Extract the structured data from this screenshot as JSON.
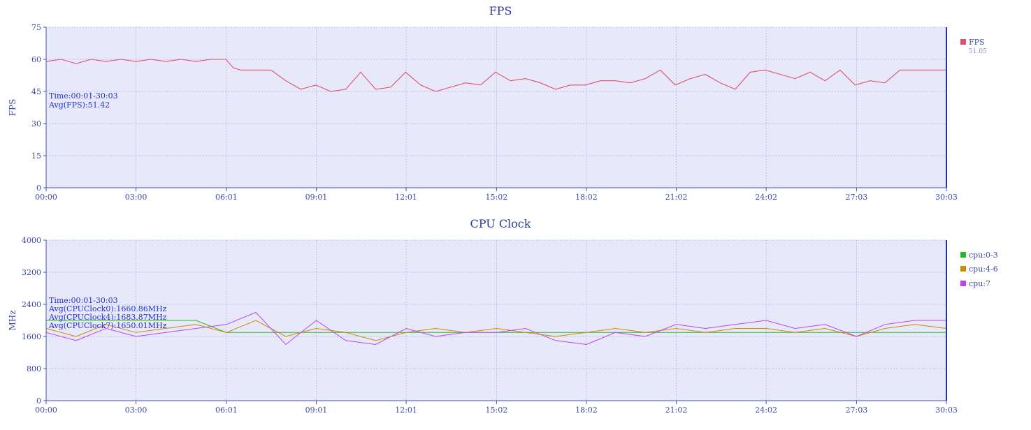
{
  "chart_data": [
    {
      "type": "line",
      "title": "FPS",
      "ylabel": "FPS",
      "xlim": [
        "00:00",
        "30:03"
      ],
      "ylim": [
        0,
        75
      ],
      "yticks": [
        "0",
        "15",
        "30",
        "45",
        "60",
        "75"
      ],
      "xticks": [
        "00:00",
        "03:00",
        "06:01",
        "09:01",
        "12:01",
        "15:02",
        "18:02",
        "21:02",
        "24:02",
        "27:03",
        "30:03"
      ],
      "grid": true,
      "legend_position": "right",
      "annotations": [
        "Time:00:01-30:03",
        "Avg(FPS):51.42"
      ],
      "series": [
        {
          "name": "FPS",
          "legend_value": "51.05",
          "color": "#e0506a",
          "x": [
            "00:00",
            "00:30",
            "01:00",
            "01:30",
            "02:00",
            "02:30",
            "03:00",
            "03:30",
            "04:00",
            "04:30",
            "05:00",
            "05:30",
            "06:00",
            "06:15",
            "06:30",
            "07:00",
            "07:30",
            "08:00",
            "08:30",
            "09:00",
            "09:30",
            "10:00",
            "10:30",
            "11:00",
            "11:30",
            "12:00",
            "12:30",
            "13:00",
            "13:30",
            "14:00",
            "14:30",
            "15:00",
            "15:30",
            "16:00",
            "16:30",
            "17:00",
            "17:30",
            "18:00",
            "18:30",
            "19:00",
            "19:30",
            "20:00",
            "20:30",
            "21:00",
            "21:30",
            "22:00",
            "22:30",
            "23:00",
            "23:30",
            "24:00",
            "24:30",
            "25:00",
            "25:30",
            "26:00",
            "26:30",
            "27:00",
            "27:30",
            "28:00",
            "28:30",
            "29:00",
            "29:30",
            "30:03"
          ],
          "values": [
            59,
            60,
            58,
            60,
            59,
            60,
            59,
            60,
            59,
            60,
            59,
            60,
            60,
            56,
            55,
            55,
            55,
            50,
            46,
            48,
            45,
            46,
            54,
            46,
            47,
            54,
            48,
            45,
            47,
            49,
            48,
            54,
            50,
            51,
            49,
            46,
            48,
            48,
            50,
            50,
            49,
            51,
            55,
            48,
            51,
            53,
            49,
            46,
            54,
            55,
            53,
            51,
            54,
            50,
            55,
            48,
            50,
            49,
            55,
            55,
            55,
            55
          ]
        }
      ]
    },
    {
      "type": "line",
      "title": "CPU Clock",
      "ylabel": "MHz",
      "xlim": [
        "00:00",
        "30:03"
      ],
      "ylim": [
        0,
        4000
      ],
      "yticks": [
        "0",
        "800",
        "1600",
        "2400",
        "3200",
        "4000"
      ],
      "xticks": [
        "00:00",
        "03:00",
        "06:01",
        "09:01",
        "12:01",
        "15:02",
        "18:02",
        "21:02",
        "24:02",
        "27:03",
        "30:03"
      ],
      "grid": true,
      "legend_position": "right",
      "annotations": [
        "Time:00:01-30:03",
        "Avg(CPUClock0):1660.86MHz",
        "Avg(CPUClock4):1683.87MHz",
        "Avg(CPUClock7):1650.01MHz"
      ],
      "series": [
        {
          "name": "cpu:0-3",
          "color": "#22bb22",
          "x": [
            "00:00",
            "01:00",
            "02:00",
            "03:00",
            "04:00",
            "05:00",
            "06:01",
            "07:00",
            "08:00",
            "09:01",
            "10:00",
            "11:00",
            "12:01",
            "13:00",
            "14:00",
            "15:02",
            "16:00",
            "17:00",
            "18:02",
            "19:00",
            "20:00",
            "21:02",
            "22:00",
            "23:00",
            "24:02",
            "25:00",
            "26:00",
            "27:03",
            "28:00",
            "29:00",
            "30:03"
          ],
          "values": [
            2000,
            2000,
            2000,
            2000,
            2000,
            2000,
            1700,
            1700,
            1700,
            1700,
            1700,
            1700,
            1700,
            1700,
            1700,
            1700,
            1700,
            1700,
            1700,
            1700,
            1700,
            1700,
            1700,
            1700,
            1700,
            1700,
            1700,
            1700,
            1700,
            1700,
            1700
          ]
        },
        {
          "name": "cpu:4-6",
          "color": "#cc8a00",
          "x": [
            "00:00",
            "01:00",
            "02:00",
            "03:00",
            "04:00",
            "05:00",
            "06:01",
            "07:00",
            "08:00",
            "09:01",
            "10:00",
            "11:00",
            "12:01",
            "13:00",
            "14:00",
            "15:02",
            "16:00",
            "17:00",
            "18:02",
            "19:00",
            "20:00",
            "21:02",
            "22:00",
            "23:00",
            "24:02",
            "25:00",
            "26:00",
            "27:03",
            "28:00",
            "29:00",
            "30:03"
          ],
          "values": [
            1800,
            1600,
            1900,
            1700,
            1800,
            1900,
            1700,
            2000,
            1600,
            1800,
            1700,
            1500,
            1700,
            1800,
            1700,
            1800,
            1700,
            1600,
            1700,
            1800,
            1700,
            1800,
            1700,
            1800,
            1800,
            1700,
            1800,
            1600,
            1800,
            1900,
            1800
          ]
        },
        {
          "name": "cpu:7",
          "color": "#bb44ee",
          "x": [
            "00:00",
            "01:00",
            "02:00",
            "03:00",
            "04:00",
            "05:00",
            "06:01",
            "07:00",
            "08:00",
            "09:01",
            "10:00",
            "11:00",
            "12:01",
            "13:00",
            "14:00",
            "15:02",
            "16:00",
            "17:00",
            "18:02",
            "19:00",
            "20:00",
            "21:02",
            "22:00",
            "23:00",
            "24:02",
            "25:00",
            "26:00",
            "27:03",
            "28:00",
            "29:00",
            "30:03"
          ],
          "values": [
            1700,
            1500,
            1800,
            1600,
            1700,
            1800,
            1900,
            2200,
            1400,
            2000,
            1500,
            1400,
            1800,
            1600,
            1700,
            1700,
            1800,
            1500,
            1400,
            1700,
            1600,
            1900,
            1800,
            1900,
            2000,
            1800,
            1900,
            1600,
            1900,
            2000,
            2000
          ]
        }
      ]
    }
  ]
}
